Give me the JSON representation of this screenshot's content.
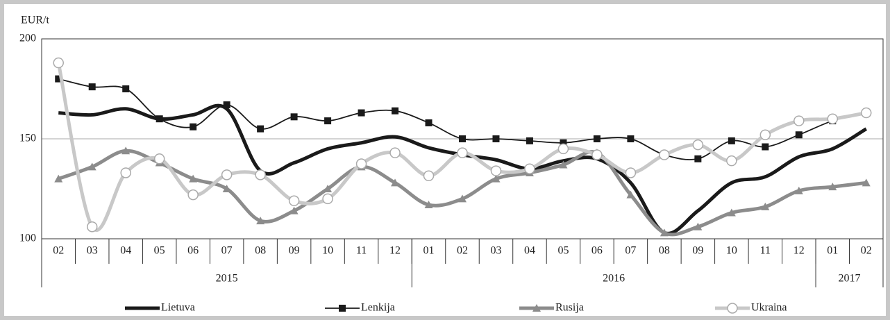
{
  "chart_data": {
    "type": "line",
    "y_label": "EUR/t",
    "categories": [
      "02",
      "03",
      "04",
      "05",
      "06",
      "07",
      "08",
      "09",
      "10",
      "11",
      "12",
      "01",
      "02",
      "03",
      "04",
      "05",
      "06",
      "07",
      "08",
      "09",
      "10",
      "11",
      "12",
      "01",
      "02"
    ],
    "x_groups": [
      {
        "label": "2015",
        "count": 11
      },
      {
        "label": "2016",
        "count": 12
      },
      {
        "label": "2017",
        "count": 2
      }
    ],
    "ylim": [
      100,
      200
    ],
    "yticks": [
      100,
      150,
      200
    ],
    "grid": true,
    "legend": "bottom",
    "series": [
      {
        "name": "Lietuva",
        "color": "#1a1a1a",
        "marker": "none",
        "values": [
          163,
          162,
          165,
          160,
          162,
          165,
          134,
          138,
          145,
          148,
          151,
          145.5,
          142,
          139.5,
          135,
          139,
          140,
          128,
          103,
          114,
          128,
          131,
          141,
          145,
          155
        ]
      },
      {
        "name": "Lenkija",
        "color": "#1a1a1a",
        "marker": "square",
        "values": [
          180,
          176,
          175,
          160,
          156,
          167,
          155,
          161,
          159,
          163,
          164,
          158,
          150,
          150,
          149,
          148,
          150,
          150,
          142,
          140,
          149,
          146,
          152,
          159,
          163
        ]
      },
      {
        "name": "Rusija",
        "color": "#8c8c8c",
        "marker": "triangle",
        "values": [
          130,
          136,
          144,
          138,
          130,
          125,
          109,
          114,
          125,
          136,
          128,
          117,
          120,
          130,
          133,
          137,
          143,
          122,
          103,
          106,
          113,
          116,
          124,
          126,
          128
        ]
      },
      {
        "name": "Ukraina",
        "color": "#c8c8c8",
        "marker": "circle",
        "values": [
          188,
          106,
          133,
          140,
          122,
          132,
          132,
          119,
          120,
          137.5,
          143,
          131.5,
          143,
          134,
          135,
          145,
          142,
          133,
          142,
          147,
          139,
          152,
          159,
          160,
          163
        ]
      }
    ]
  }
}
